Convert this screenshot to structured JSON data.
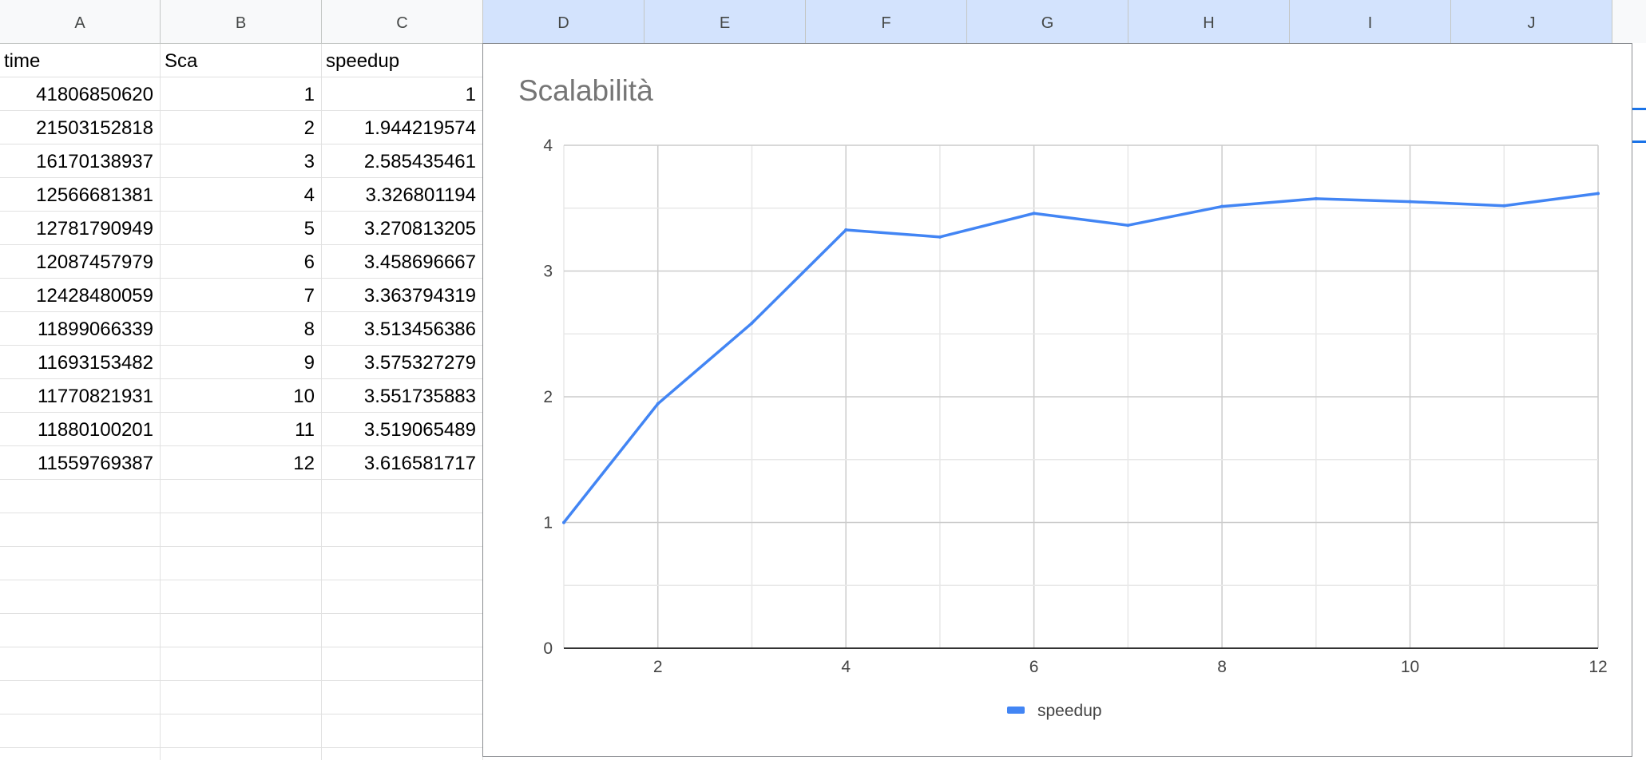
{
  "columns": [
    "A",
    "B",
    "C",
    "D",
    "E",
    "F",
    "G",
    "H",
    "I",
    "J"
  ],
  "sheet": {
    "header_row": [
      "time",
      "Sca",
      "speedup"
    ],
    "rows": [
      [
        "41806850620",
        "1",
        "1"
      ],
      [
        "21503152818",
        "2",
        "1.944219574"
      ],
      [
        "16170138937",
        "3",
        "2.585435461"
      ],
      [
        "12566681381",
        "4",
        "3.326801194"
      ],
      [
        "12781790949",
        "5",
        "3.270813205"
      ],
      [
        "12087457979",
        "6",
        "3.458696667"
      ],
      [
        "12428480059",
        "7",
        "3.363794319"
      ],
      [
        "11899066339",
        "8",
        "3.513456386"
      ],
      [
        "11693153482",
        "9",
        "3.575327279"
      ],
      [
        "11770821931",
        "10",
        "3.551735883"
      ],
      [
        "11880100201",
        "11",
        "3.519065489"
      ],
      [
        "11559769387",
        "12",
        "3.616581717"
      ]
    ]
  },
  "chart_data": {
    "type": "line",
    "title": "Scalabilità",
    "xlabel": "",
    "ylabel": "",
    "xlim": [
      1,
      12
    ],
    "ylim": [
      0,
      4
    ],
    "x_ticks": [
      "2",
      "4",
      "6",
      "8",
      "10",
      "12"
    ],
    "y_ticks": [
      "0",
      "1",
      "2",
      "3",
      "4"
    ],
    "x": [
      1,
      2,
      3,
      4,
      5,
      6,
      7,
      8,
      9,
      10,
      11,
      12
    ],
    "series": [
      {
        "name": "speedup",
        "color": "#4285f4",
        "values": [
          1,
          1.944219574,
          2.585435461,
          3.326801194,
          3.270813205,
          3.458696667,
          3.363794319,
          3.513456386,
          3.575327279,
          3.551735883,
          3.519065489,
          3.616581717
        ]
      }
    ],
    "legend": "bottom",
    "grid": true
  }
}
